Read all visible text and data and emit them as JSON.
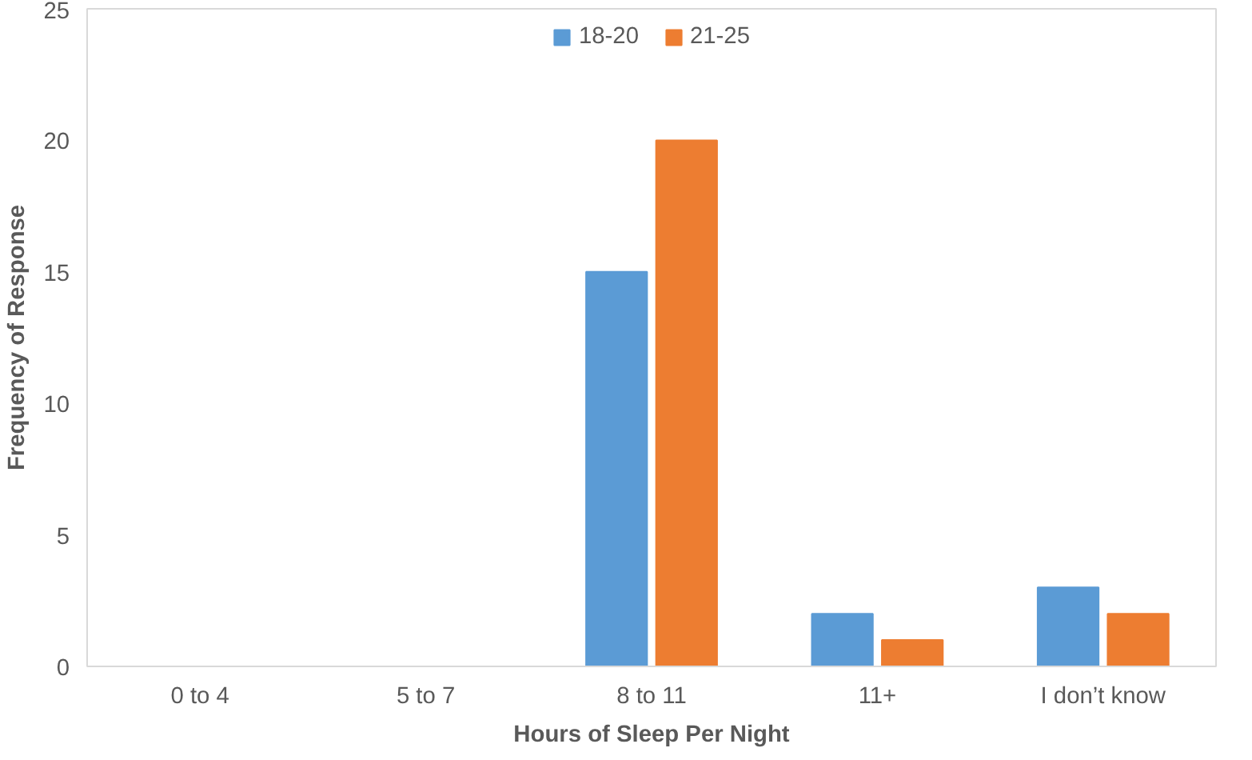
{
  "chart_data": {
    "type": "bar",
    "xlabel": "Hours of Sleep Per Night",
    "ylabel": "Frequency of Response",
    "categories": [
      "0 to 4",
      "5 to 7",
      "8 to 11",
      "11+",
      "I don’t know"
    ],
    "series": [
      {
        "name": "18-20",
        "color": "#5b9bd5",
        "values": [
          0,
          0,
          15,
          2,
          3
        ]
      },
      {
        "name": "21-25",
        "color": "#ed7d31",
        "values": [
          0,
          0,
          20,
          1,
          2
        ]
      }
    ],
    "ylim": [
      0,
      25
    ],
    "yticks": [
      0,
      5,
      10,
      15,
      20,
      25
    ],
    "grid": false,
    "legend": "top"
  }
}
